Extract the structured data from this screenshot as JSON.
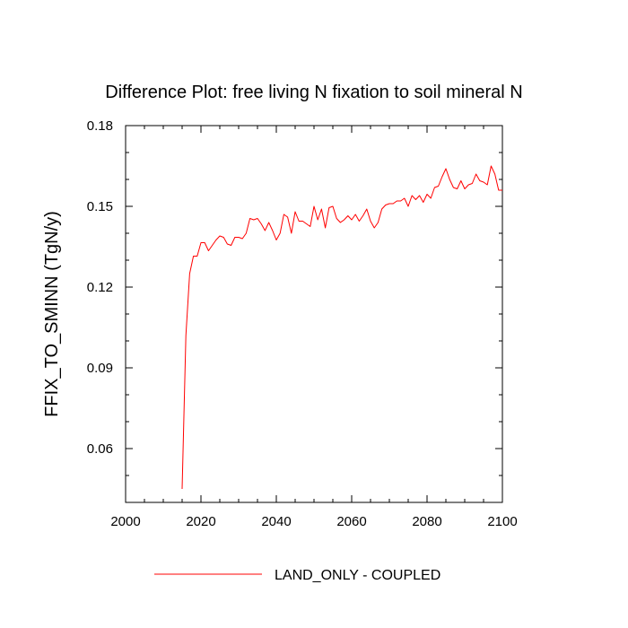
{
  "chart_data": {
    "type": "line",
    "title": "Difference Plot: free living N fixation to soil mineral N",
    "xlabel": "",
    "ylabel": "FFIX_TO_SMINN  (TgN/y)",
    "xlim": [
      2000,
      2100
    ],
    "ylim": [
      0.04,
      0.18
    ],
    "xticks": [
      2000,
      2020,
      2040,
      2060,
      2080,
      2100
    ],
    "yticks": [
      0.06,
      0.09,
      0.12,
      0.15,
      0.18
    ],
    "ytick_labels": [
      "0.06",
      "0.09",
      "0.12",
      "0.15",
      "0.18"
    ],
    "grid": false,
    "legend_position": "bottom-center",
    "series": [
      {
        "name": "LAND_ONLY - COUPLED",
        "color": "#ff0000",
        "x": [
          2015,
          2016,
          2017,
          2018,
          2019,
          2020,
          2021,
          2022,
          2023,
          2024,
          2025,
          2026,
          2027,
          2028,
          2029,
          2030,
          2031,
          2032,
          2033,
          2034,
          2035,
          2036,
          2037,
          2038,
          2039,
          2040,
          2041,
          2042,
          2043,
          2044,
          2045,
          2046,
          2047,
          2048,
          2049,
          2050,
          2051,
          2052,
          2053,
          2054,
          2055,
          2056,
          2057,
          2058,
          2059,
          2060,
          2061,
          2062,
          2063,
          2064,
          2065,
          2066,
          2067,
          2068,
          2069,
          2070,
          2071,
          2072,
          2073,
          2074,
          2075,
          2076,
          2077,
          2078,
          2079,
          2080,
          2081,
          2082,
          2083,
          2084,
          2085,
          2086,
          2087,
          2088,
          2089,
          2090,
          2091,
          2092,
          2093,
          2094,
          2095,
          2096,
          2097,
          2098,
          2099,
          2100
        ],
        "values": [
          0.045,
          0.102,
          0.125,
          0.1315,
          0.1315,
          0.1365,
          0.1365,
          0.1335,
          0.1355,
          0.1375,
          0.139,
          0.1385,
          0.136,
          0.1355,
          0.1385,
          0.1385,
          0.138,
          0.14,
          0.1455,
          0.145,
          0.1455,
          0.1435,
          0.141,
          0.144,
          0.141,
          0.1375,
          0.14,
          0.147,
          0.146,
          0.14,
          0.148,
          0.1445,
          0.1445,
          0.1435,
          0.1425,
          0.15,
          0.145,
          0.149,
          0.142,
          0.1495,
          0.15,
          0.1455,
          0.144,
          0.145,
          0.1465,
          0.145,
          0.147,
          0.1445,
          0.1465,
          0.149,
          0.1445,
          0.142,
          0.144,
          0.149,
          0.1505,
          0.151,
          0.151,
          0.152,
          0.152,
          0.153,
          0.15,
          0.154,
          0.1525,
          0.154,
          0.1515,
          0.1545,
          0.153,
          0.157,
          0.1575,
          0.161,
          0.164,
          0.16,
          0.157,
          0.1565,
          0.1595,
          0.1565,
          0.158,
          0.1585,
          0.162,
          0.1595,
          0.159,
          0.158,
          0.165,
          0.162,
          0.156,
          0.156
        ]
      }
    ]
  }
}
